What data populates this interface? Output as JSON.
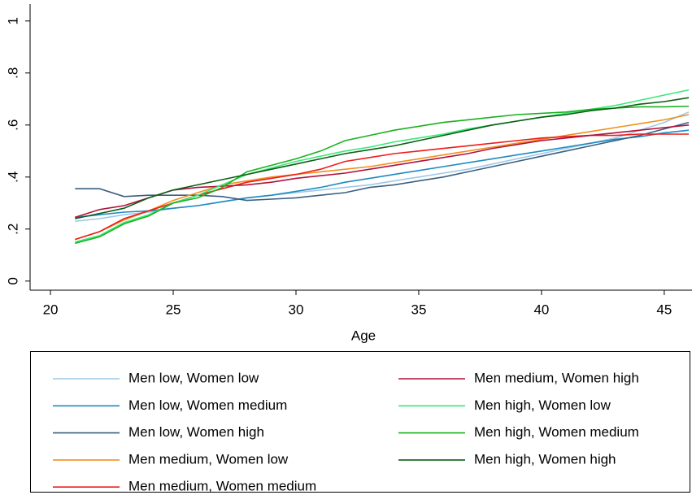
{
  "chart_data": {
    "type": "line",
    "x_label": "Age",
    "x": [
      21,
      22,
      23,
      24,
      25,
      26,
      27,
      28,
      29,
      30,
      31,
      32,
      33,
      34,
      35,
      36,
      37,
      38,
      39,
      40,
      41,
      42,
      43,
      44,
      45,
      46
    ],
    "xlim": [
      19.17,
      46.13
    ],
    "xticks": [
      20,
      25,
      30,
      35,
      40,
      45
    ],
    "ylim": [
      -0.035,
      1.065
    ],
    "yticks": [
      0,
      {
        "value": 0.2,
        "label": ".2"
      },
      {
        "value": 0.4,
        "label": ".4"
      },
      {
        "value": 0.6,
        "label": ".6"
      },
      {
        "value": 0.8,
        "label": ".8"
      },
      1
    ],
    "grid": false,
    "legend": "bottom",
    "series": [
      {
        "name": "Men low, Women low",
        "color": "#9ec8e8",
        "values": [
          0.23,
          0.24,
          0.255,
          0.265,
          0.28,
          0.29,
          0.305,
          0.32,
          0.33,
          0.34,
          0.35,
          0.36,
          0.37,
          0.385,
          0.4,
          0.415,
          0.43,
          0.45,
          0.47,
          0.49,
          0.51,
          0.53,
          0.55,
          0.58,
          0.61,
          0.65
        ]
      },
      {
        "name": "Men low, Women medium",
        "color": "#1f8ac0",
        "values": [
          0.245,
          0.255,
          0.265,
          0.27,
          0.28,
          0.29,
          0.305,
          0.32,
          0.33,
          0.345,
          0.36,
          0.38,
          0.395,
          0.41,
          0.425,
          0.44,
          0.455,
          0.47,
          0.485,
          0.5,
          0.515,
          0.53,
          0.545,
          0.555,
          0.57,
          0.58
        ]
      },
      {
        "name": "Men low, Women high",
        "color": "#3a5f7f",
        "values": [
          0.355,
          0.355,
          0.325,
          0.33,
          0.33,
          0.33,
          0.325,
          0.31,
          0.315,
          0.32,
          0.33,
          0.34,
          0.36,
          0.37,
          0.385,
          0.4,
          0.42,
          0.44,
          0.46,
          0.48,
          0.5,
          0.52,
          0.54,
          0.56,
          0.585,
          0.61
        ]
      },
      {
        "name": "Men medium, Women low",
        "color": "#f0901e",
        "values": [
          0.16,
          0.19,
          0.235,
          0.27,
          0.31,
          0.34,
          0.37,
          0.385,
          0.4,
          0.41,
          0.42,
          0.43,
          0.44,
          0.455,
          0.47,
          0.485,
          0.5,
          0.515,
          0.53,
          0.545,
          0.56,
          0.575,
          0.59,
          0.605,
          0.62,
          0.64
        ]
      },
      {
        "name": "Men medium, Women medium",
        "color": "#ee1c1c",
        "values": [
          0.16,
          0.19,
          0.24,
          0.27,
          0.3,
          0.33,
          0.355,
          0.38,
          0.395,
          0.41,
          0.43,
          0.46,
          0.475,
          0.49,
          0.5,
          0.51,
          0.52,
          0.53,
          0.54,
          0.55,
          0.555,
          0.56,
          0.56,
          0.565,
          0.565,
          0.565
        ]
      },
      {
        "name": "Men medium, Women high",
        "color": "#b0123a",
        "values": [
          0.245,
          0.275,
          0.29,
          0.32,
          0.35,
          0.36,
          0.365,
          0.37,
          0.38,
          0.395,
          0.405,
          0.415,
          0.43,
          0.445,
          0.46,
          0.475,
          0.49,
          0.51,
          0.525,
          0.54,
          0.55,
          0.56,
          0.57,
          0.58,
          0.59,
          0.6
        ]
      },
      {
        "name": "Men high, Women low",
        "color": "#3ae87a",
        "values": [
          0.15,
          0.175,
          0.225,
          0.255,
          0.3,
          0.33,
          0.37,
          0.41,
          0.435,
          0.46,
          0.48,
          0.5,
          0.515,
          0.535,
          0.55,
          0.565,
          0.585,
          0.6,
          0.615,
          0.63,
          0.645,
          0.66,
          0.675,
          0.695,
          0.715,
          0.735
        ]
      },
      {
        "name": "Men high, Women medium",
        "color": "#19b21e",
        "values": [
          0.145,
          0.17,
          0.22,
          0.25,
          0.3,
          0.32,
          0.36,
          0.42,
          0.445,
          0.47,
          0.5,
          0.54,
          0.56,
          0.58,
          0.595,
          0.61,
          0.62,
          0.63,
          0.64,
          0.645,
          0.65,
          0.66,
          0.665,
          0.67,
          0.67,
          0.672
        ]
      },
      {
        "name": "Men high, Women high",
        "color": "#0b5e14",
        "values": [
          0.24,
          0.26,
          0.28,
          0.32,
          0.35,
          0.37,
          0.39,
          0.41,
          0.43,
          0.45,
          0.47,
          0.49,
          0.505,
          0.52,
          0.54,
          0.56,
          0.58,
          0.6,
          0.615,
          0.63,
          0.64,
          0.655,
          0.665,
          0.68,
          0.69,
          0.705
        ]
      }
    ]
  }
}
